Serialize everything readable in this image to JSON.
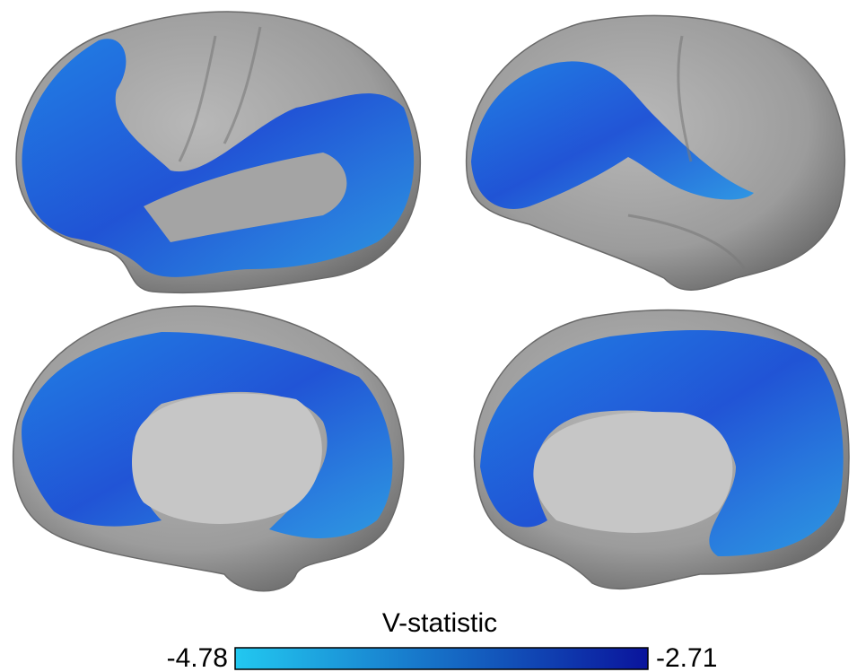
{
  "colorbar": {
    "title": "V-statistic",
    "min": -4.78,
    "max": -2.71,
    "colors": [
      "#22c8f0",
      "#0a149c"
    ]
  }
}
